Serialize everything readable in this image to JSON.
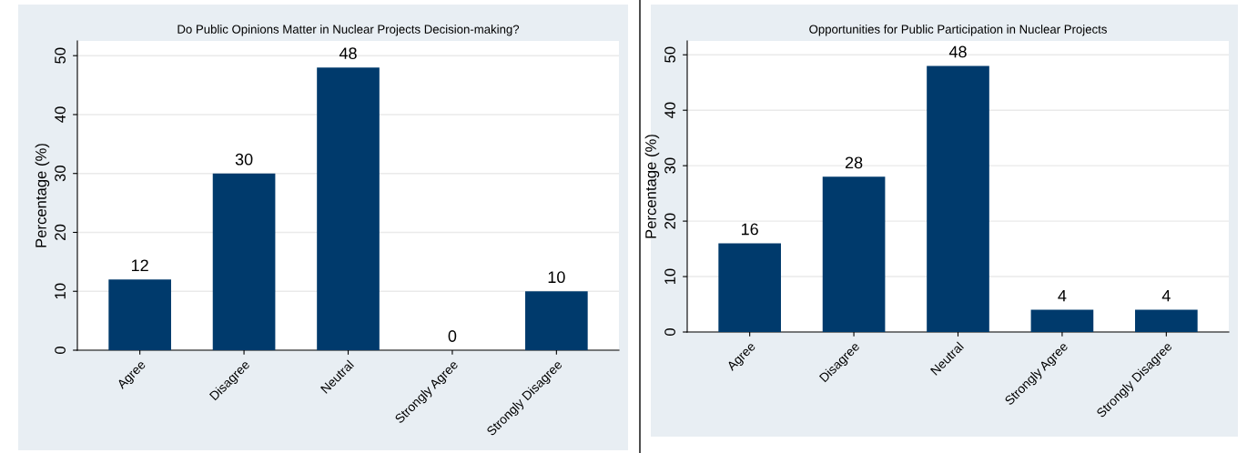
{
  "chart_data": [
    {
      "type": "bar",
      "title": "Do Public Opinions Matter in Nuclear Projects Decision-making?",
      "ylabel": "Percentage (%)",
      "categories": [
        "Agree",
        "Disagree",
        "Neutral",
        "Strongly Agree",
        "Strongly Disagree"
      ],
      "values": [
        12,
        30,
        48,
        0,
        10
      ],
      "color": "#003a6c",
      "data_labels": true,
      "ylim": [
        0,
        52.5
      ],
      "yticks": [
        0,
        10,
        20,
        30,
        40,
        50
      ],
      "grid": "y",
      "legend": false
    },
    {
      "type": "bar",
      "title": "Opportunities for Public Participation in Nuclear Projects",
      "ylabel": "Percentage (%)",
      "categories": [
        "Agree",
        "Disagree",
        "Neutral",
        "Strongly Agree",
        "Strongly Disagree"
      ],
      "values": [
        16,
        28,
        48,
        4,
        4
      ],
      "color": "#003a6c",
      "data_labels": true,
      "ylim": [
        0,
        52.5
      ],
      "yticks": [
        0,
        10,
        20,
        30,
        40,
        50
      ],
      "grid": "y",
      "legend": false
    }
  ]
}
